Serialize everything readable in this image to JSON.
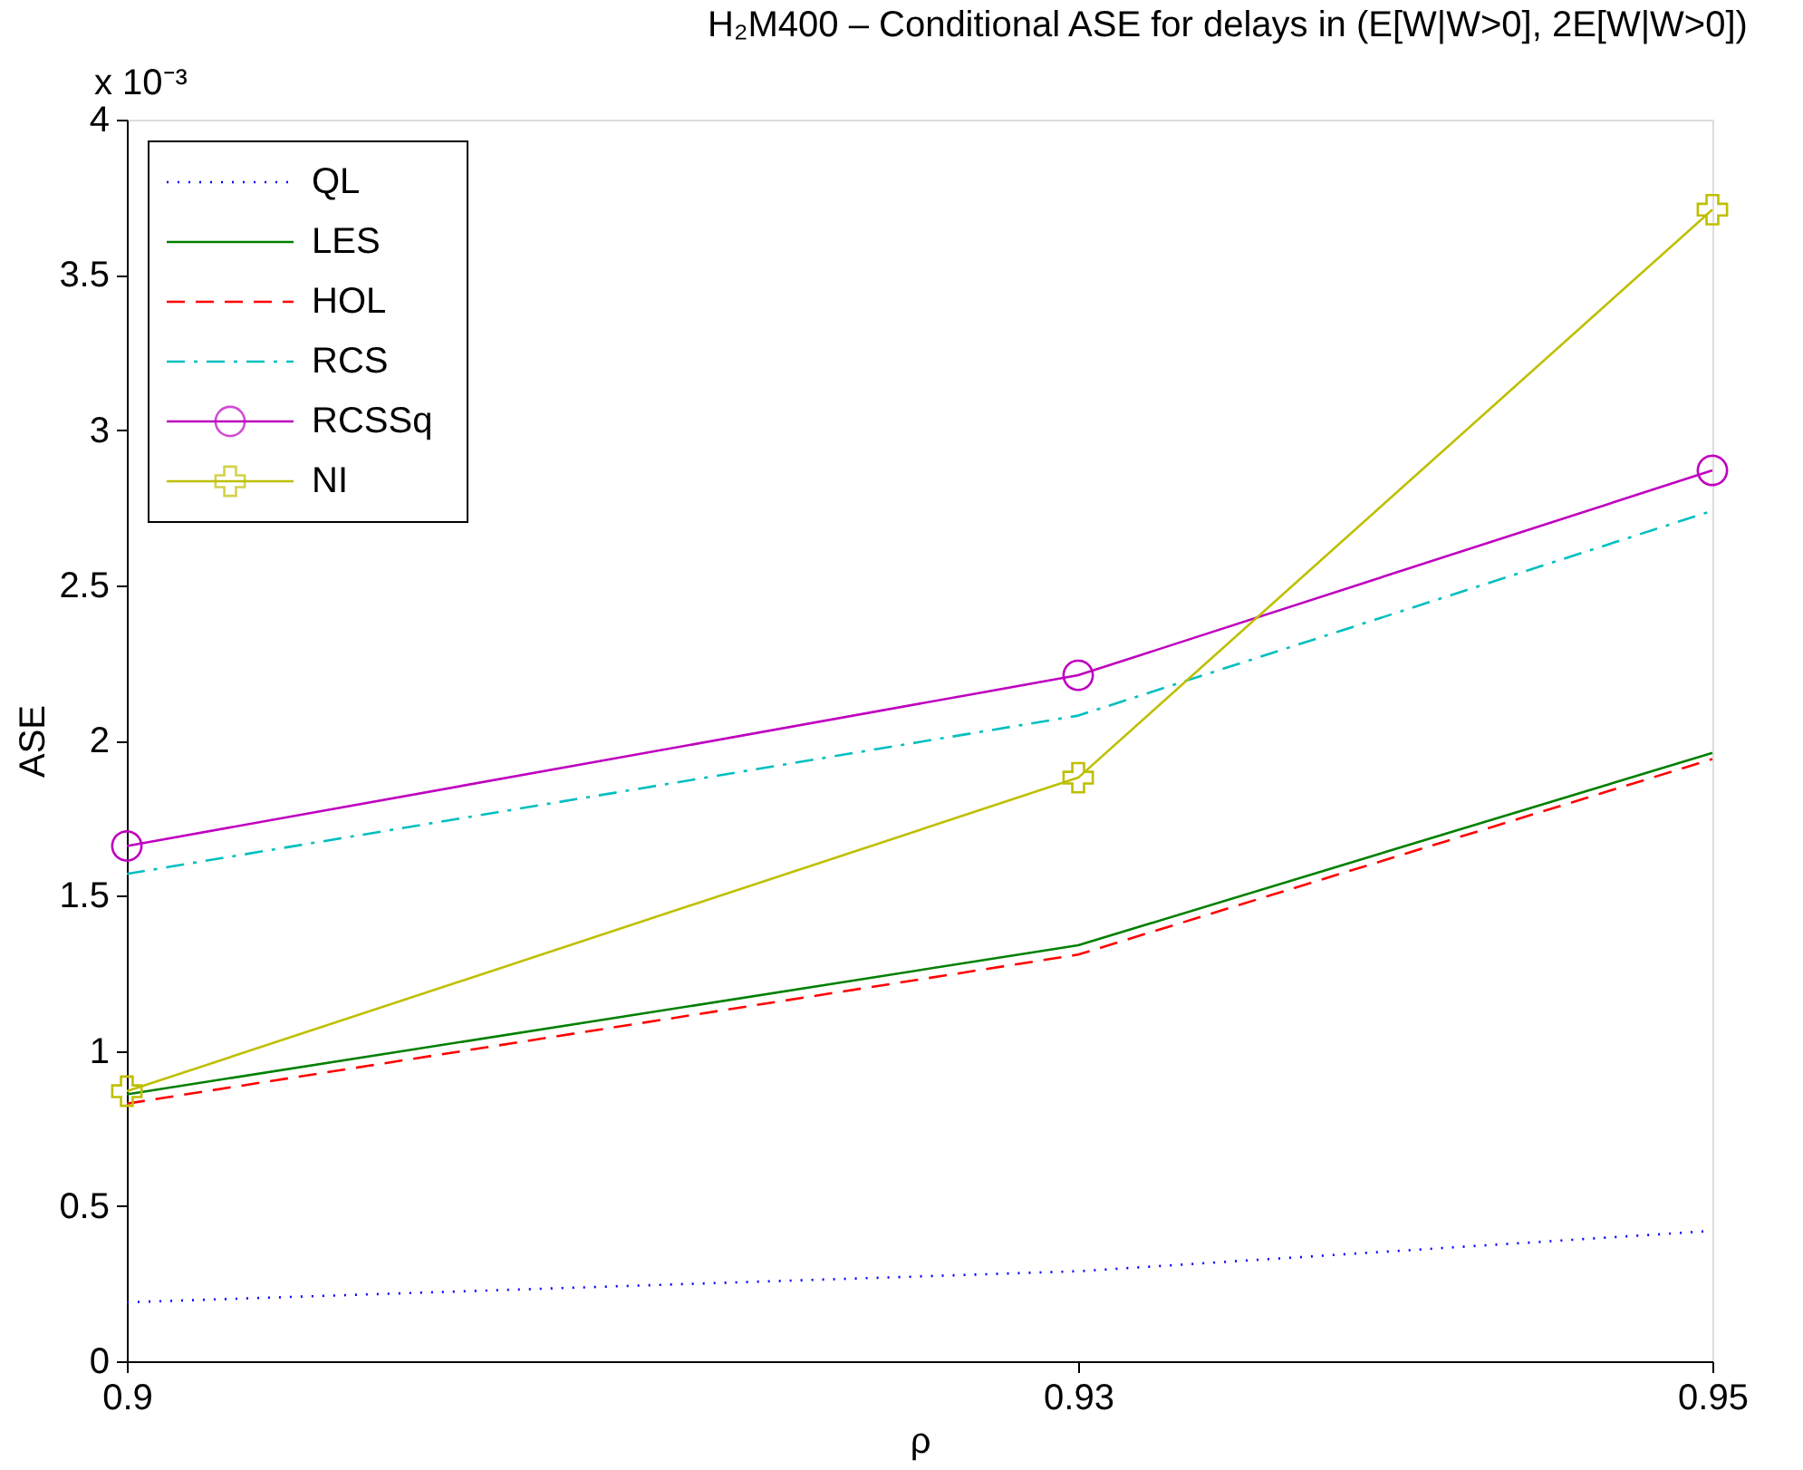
{
  "chart_data": {
    "type": "line",
    "title": "H₂M400 – Conditional ASE for delays in (E[W|W>0], 2E[W|W>0])",
    "xlabel": "ρ",
    "ylabel": "ASE",
    "annotations": [
      "x 10⁻³"
    ],
    "x": [
      0.9,
      0.93,
      0.95
    ],
    "xlim": [
      0.9,
      0.95
    ],
    "xticks": [
      0.9,
      0.93,
      0.95
    ],
    "ylim": [
      0,
      4
    ],
    "yticks": [
      0,
      0.5,
      1,
      1.5,
      2,
      2.5,
      3,
      3.5,
      4
    ],
    "grid": false,
    "legend": "top left",
    "series": [
      {
        "name": "QL",
        "color": "#0000ff",
        "values": [
          0.19,
          0.29,
          0.42
        ],
        "line_style": "dotted",
        "marker": "none"
      },
      {
        "name": "LES",
        "color": "#008000",
        "values": [
          0.86,
          1.34,
          1.96
        ],
        "line_style": "solid",
        "marker": "none"
      },
      {
        "name": "HOL",
        "color": "#ff0000",
        "values": [
          0.83,
          1.31,
          1.94
        ],
        "line_style": "dashed",
        "marker": "none"
      },
      {
        "name": "RCS",
        "color": "#00bfbf",
        "values": [
          1.57,
          2.08,
          2.74
        ],
        "line_style": "dashdot",
        "marker": "none"
      },
      {
        "name": "RCSSq",
        "color": "#bf00bf",
        "values": [
          1.66,
          2.21,
          2.87
        ],
        "line_style": "solid",
        "marker": "circle"
      },
      {
        "name": "NI",
        "color": "#bfbf00",
        "values": [
          0.87,
          1.88,
          3.71
        ],
        "line_style": "solid",
        "marker": "cross"
      }
    ]
  }
}
